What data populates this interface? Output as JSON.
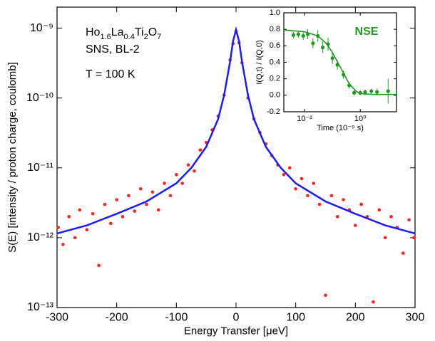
{
  "chart_data": [
    {
      "type": "scatter",
      "xlabel": "Energy Transfer [μeV]",
      "ylabel": "S(E) [intensity / proton charge, coulomb]",
      "annotations": {
        "compound": [
          "Ho",
          "1.6",
          "La",
          "0.4",
          "Ti",
          "2",
          "O",
          "7"
        ],
        "facility": "SNS, BL-2",
        "temperature": "T = 100 K"
      },
      "xlim": [
        -300,
        300
      ],
      "xticks": [
        -300,
        -200,
        -100,
        0,
        100,
        200,
        300
      ],
      "ylim": [
        1e-13,
        2e-09
      ],
      "yscale": "log",
      "yticks": [
        {
          "value": 1e-13,
          "label": "10⁻¹³"
        },
        {
          "value": 1e-12,
          "label": "10⁻¹²"
        },
        {
          "value": 1e-11,
          "label": "10⁻¹¹"
        },
        {
          "value": 1e-10,
          "label": "10⁻¹⁰"
        },
        {
          "value": 1e-09,
          "label": "10⁻⁹"
        }
      ],
      "series": [
        {
          "style": "points",
          "color": "#ff2020",
          "x": [
            -298,
            -290,
            -280,
            -270,
            -262,
            -250,
            -240,
            -230,
            -220,
            -210,
            -200,
            -190,
            -180,
            -170,
            -160,
            -150,
            -140,
            -130,
            -120,
            -110,
            -100,
            -90,
            -80,
            -70,
            -60,
            -50,
            -40,
            -30,
            -20,
            -10,
            -5,
            0,
            5,
            10,
            20,
            30,
            40,
            50,
            60,
            70,
            80,
            90,
            100,
            110,
            120,
            130,
            140,
            150,
            160,
            170,
            180,
            190,
            200,
            210,
            220,
            230,
            240,
            250,
            260,
            270,
            280,
            290,
            298
          ],
          "values": [
            1.4e-12,
            8e-13,
            2e-12,
            1e-12,
            2.5e-12,
            1.3e-12,
            2.2e-12,
            4e-13,
            3e-12,
            1.6e-12,
            3.5e-12,
            2e-12,
            4e-12,
            2.4e-12,
            5e-12,
            3e-12,
            4.5e-12,
            2.5e-12,
            6e-12,
            4e-12,
            8e-12,
            6e-12,
            1.1e-11,
            9e-12,
            1.8e-11,
            2.3e-11,
            3.5e-11,
            5.5e-11,
            1.1e-10,
            3.5e-10,
            6e-10,
            9e-10,
            6.2e-10,
            3.2e-10,
            1e-10,
            5e-11,
            3.2e-11,
            2.2e-11,
            1.5e-11,
            1.1e-11,
            8e-12,
            1e-11,
            5e-12,
            7e-12,
            4e-12,
            6e-12,
            3e-12,
            1.5e-13,
            4e-12,
            2e-12,
            3.5e-12,
            2.5e-12,
            1.5e-12,
            3e-12,
            2e-12,
            1.2e-13,
            2.5e-12,
            1e-12,
            2e-12,
            1.4e-12,
            6e-13,
            1.8e-12,
            1e-12
          ]
        },
        {
          "style": "line",
          "color": "#1a1aff",
          "x": [
            -300,
            -250,
            -200,
            -150,
            -100,
            -75,
            -50,
            -30,
            -20,
            -10,
            -5,
            0,
            5,
            10,
            20,
            30,
            50,
            75,
            100,
            150,
            200,
            250,
            300
          ],
          "values": [
            1.15e-12,
            1.5e-12,
            2.2e-12,
            3.3e-12,
            6e-12,
            1e-11,
            2e-11,
            5e-11,
            1.1e-10,
            3.3e-10,
            6.5e-10,
            9.5e-10,
            6.5e-10,
            3.3e-10,
            1.1e-10,
            5e-11,
            2e-11,
            1e-11,
            6e-12,
            3.3e-12,
            2.2e-12,
            1.5e-12,
            1.15e-12
          ]
        }
      ]
    },
    {
      "type": "scatter",
      "xlabel": "Time (10⁻⁹ s)",
      "ylabel": "I(Q,t) / I(Q,0)",
      "annotations": {
        "label": "NSE"
      },
      "xlim": [
        0.0018,
        20
      ],
      "xscale": "log",
      "xticks": [
        {
          "value": 0.01,
          "label": "10⁻²"
        },
        {
          "value": 1,
          "label": "10⁰"
        }
      ],
      "ylim": [
        -0.2,
        1.0
      ],
      "yticks": [
        -0.2,
        {
          "value": 0,
          "label": "0.0"
        },
        0.2,
        0.4,
        0.6,
        0.8,
        {
          "value": 1,
          "label": "1.0"
        }
      ],
      "series": [
        {
          "style": "points",
          "color": "#1e9a1e",
          "x": [
            0.004,
            0.006,
            0.009,
            0.013,
            0.02,
            0.03,
            0.045,
            0.07,
            0.1,
            0.15,
            0.25,
            0.4,
            0.6,
            1.0,
            1.5,
            2.5,
            4,
            10
          ],
          "values": [
            0.73,
            0.74,
            0.72,
            0.74,
            0.63,
            0.72,
            0.58,
            0.62,
            0.45,
            0.37,
            0.25,
            0.12,
            0.03,
            0.03,
            0.04,
            0.05,
            0.04,
            0.05
          ],
          "errors": [
            0.04,
            0.04,
            0.05,
            0.06,
            0.06,
            0.07,
            0.07,
            0.08,
            0.07,
            0.06,
            0.05,
            0.04,
            0.03,
            0.03,
            0.03,
            0.03,
            0.04,
            0.15
          ]
        },
        {
          "style": "line",
          "color": "#1e9a1e",
          "x": [
            0.002,
            0.01,
            0.03,
            0.06,
            0.1,
            0.2,
            0.4,
            0.7,
            1,
            3,
            20
          ],
          "values": [
            0.79,
            0.77,
            0.72,
            0.63,
            0.52,
            0.33,
            0.14,
            0.05,
            0.02,
            0.01,
            0.01
          ]
        }
      ]
    }
  ]
}
